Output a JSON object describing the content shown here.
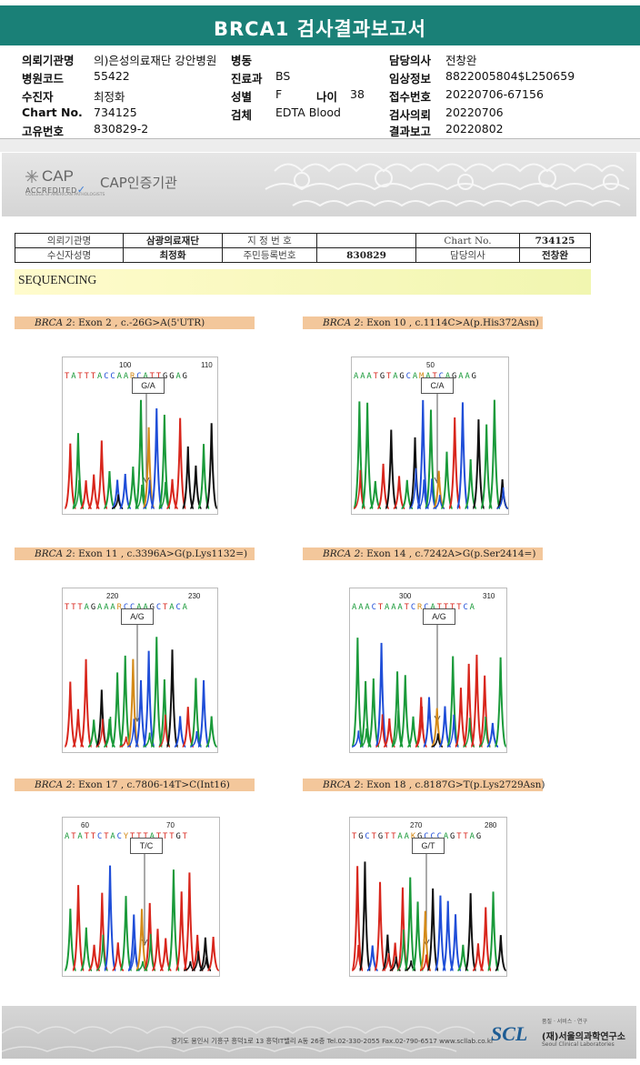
{
  "report": {
    "title": "BRCA1 검사결과보고서"
  },
  "patient_header": {
    "institution_label": "의뢰기관명",
    "institution_value": "의)은성의료재단 강안병원",
    "ward_label": "병동",
    "ward_value": "",
    "doctor_label": "담당의사",
    "doctor_value": "전창완",
    "hospital_code_label": "병원코드",
    "hospital_code_value": "55422",
    "department_label": "진료과",
    "department_value": "BS",
    "clinical_info_label": "임상정보",
    "clinical_info_value": "8822005804$L250659",
    "recipient_label": "수진자",
    "recipient_value": "최정화",
    "sex_label": "성별",
    "sex_value": "F",
    "age_label": "나이",
    "age_value": "38",
    "receipt_label": "접수번호",
    "receipt_value": "20220706-67156",
    "chart_label": "Chart No.",
    "chart_value": "734125",
    "specimen_label": "검체",
    "specimen_value": "EDTA Blood",
    "request_label": "검사의뢰",
    "request_value": "20220706",
    "unique_label": "고유번호",
    "unique_value": "830829-2",
    "result_label": "결과보고",
    "result_value": "20220802"
  },
  "cap": {
    "logo_text": "CAP",
    "accredited": "ACCREDITED",
    "college": "COLLEGE of AMERICAN PATHOLOGISTS",
    "label": "CAP인증기관"
  },
  "info_table": {
    "inst_label": "의뢰기관명",
    "inst_value": "삼광의료재단",
    "designation_label": "지 정 번 호",
    "designation_value": "",
    "chart_label": "Chart No.",
    "chart_value": "734125",
    "name_label": "수신자성명",
    "name_value": "최정화",
    "resident_label": "주민등록번호",
    "resident_value": "830829",
    "doctor_label": "담당의사",
    "doctor_value": "전창완"
  },
  "section": {
    "sequencing": "SEQUENCING"
  },
  "panels": [
    {
      "gene": "BRCA 2",
      "desc": ": Exon 2 , c.-26G>A(5'UTR)",
      "pos1": "100",
      "pos2": "110",
      "sequence": "TATTTACCAARCATTGGAG",
      "call": "G/A"
    },
    {
      "gene": "BRCA 2",
      "desc": ": Exon 10 , c.1114C>A(p.His372Asn)",
      "pos1": "50",
      "pos2": "",
      "sequence": "AAATGTAGCAMATCAGAAG",
      "call": "C/A"
    },
    {
      "gene": "BRCA 2",
      "desc": ": Exon 11 , c.3396A>G(p.Lys1132=)",
      "pos1": "220",
      "pos2": "230",
      "sequence": "TTTAGAAARCCAAGCTACA",
      "call": "A/G"
    },
    {
      "gene": "BRCA 2",
      "desc": ": Exon 14 , c.7242A>G(p.Ser2414=)",
      "pos1": "300",
      "pos2": "310",
      "sequence": "AAACTAAATCRCATTTTCA",
      "call": "A/G"
    },
    {
      "gene": "BRCA 2",
      "desc": ": Exon 17 , c.7806-14T>C(Int16)",
      "pos1": "60",
      "pos2": "70",
      "sequence": "ATATTCTACYTTTATTTGT",
      "call": "T/C"
    },
    {
      "gene": "BRCA 2",
      "desc": ": Exon 18 , c.8187G>T(p.Lys2729Asn)",
      "pos1": "270",
      "pos2": "280",
      "sequence": "TGCTGTTAAKGCCCAGTTAG",
      "call": "G/T"
    }
  ],
  "footer": {
    "address": "경기도 용인시 기흥구 흥덕1로 13 흥덕IT밸리 A동 26층  Tel.02-330-2055  Fax.02-790-6517  www.scllab.co.kr",
    "logo": "SCL",
    "tagline": "품질 · 서비스 · 연구",
    "name_ko": "(재)서울의과학연구소",
    "name_en": "Seoul Clinical Laboratories"
  },
  "colors": {
    "header_teal": "#1a8077",
    "label_orange": "#f3c79b",
    "A": "#1a9a3a",
    "C": "#1f4ed8",
    "G": "#111111",
    "T": "#d8261c"
  }
}
